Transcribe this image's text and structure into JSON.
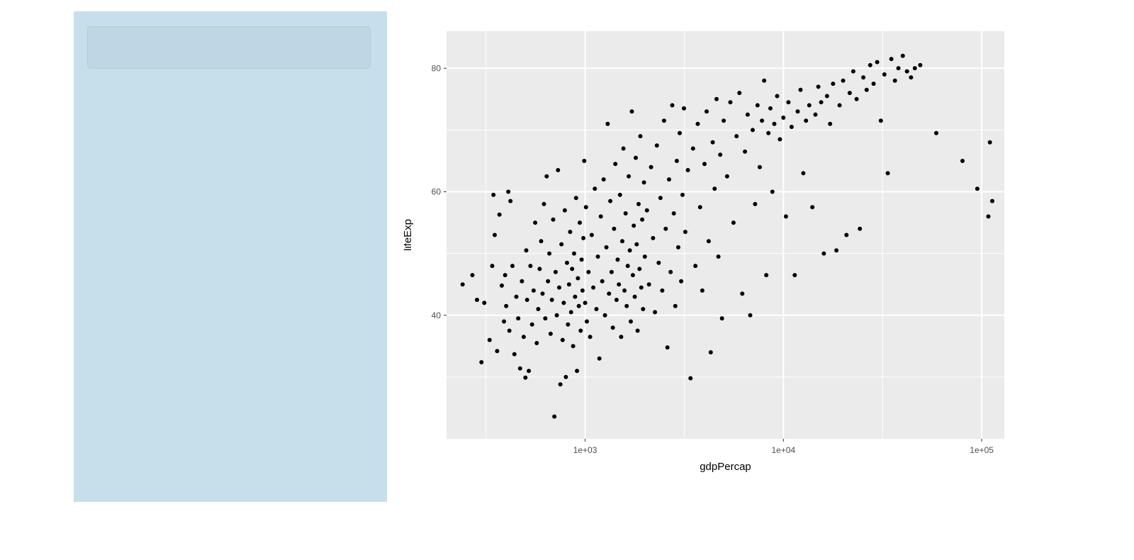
{
  "sidebar": {
    "panel_name": "sidebar-panel"
  },
  "colors": {
    "sidebar_bg": "#c6dfeb",
    "panel_bg": "#ebebeb",
    "grid": "#ffffff",
    "point": "#000000"
  },
  "chart_data": {
    "type": "scatter",
    "title": "",
    "xlabel": "gdpPercap",
    "ylabel": "lifeExp",
    "x_scale": "log10",
    "xlim": [
      200,
      130000
    ],
    "ylim": [
      20,
      86
    ],
    "x_ticks": [
      1000,
      10000,
      100000
    ],
    "x_tick_labels": [
      "1e+03",
      "1e+04",
      "1e+05"
    ],
    "y_ticks": [
      40,
      60,
      80
    ],
    "y_tick_labels": [
      "40",
      "60",
      "80"
    ],
    "grid": true,
    "legend": "none",
    "points": [
      [
        241,
        45.0
      ],
      [
        270,
        46.5
      ],
      [
        285,
        42.5
      ],
      [
        300,
        32.4
      ],
      [
        310,
        42.0
      ],
      [
        330,
        36.0
      ],
      [
        340,
        48.0
      ],
      [
        345,
        59.5
      ],
      [
        350,
        53.0
      ],
      [
        360,
        34.2
      ],
      [
        370,
        56.3
      ],
      [
        380,
        44.8
      ],
      [
        390,
        39.0
      ],
      [
        395,
        46.5
      ],
      [
        400,
        41.5
      ],
      [
        410,
        60.0
      ],
      [
        415,
        37.5
      ],
      [
        420,
        58.5
      ],
      [
        430,
        48.0
      ],
      [
        440,
        33.7
      ],
      [
        450,
        43.0
      ],
      [
        460,
        39.5
      ],
      [
        470,
        31.4
      ],
      [
        480,
        45.5
      ],
      [
        490,
        36.5
      ],
      [
        500,
        29.9
      ],
      [
        505,
        50.5
      ],
      [
        510,
        42.5
      ],
      [
        520,
        31.0
      ],
      [
        530,
        48.0
      ],
      [
        540,
        38.5
      ],
      [
        550,
        44.0
      ],
      [
        560,
        55.0
      ],
      [
        570,
        35.5
      ],
      [
        580,
        41.0
      ],
      [
        590,
        47.5
      ],
      [
        600,
        52.0
      ],
      [
        610,
        43.5
      ],
      [
        620,
        58.0
      ],
      [
        630,
        39.5
      ],
      [
        640,
        62.5
      ],
      [
        650,
        45.5
      ],
      [
        660,
        50.0
      ],
      [
        670,
        37.0
      ],
      [
        680,
        42.5
      ],
      [
        690,
        55.5
      ],
      [
        700,
        23.6
      ],
      [
        710,
        47.0
      ],
      [
        720,
        40.0
      ],
      [
        730,
        63.5
      ],
      [
        740,
        44.5
      ],
      [
        750,
        28.8
      ],
      [
        760,
        51.5
      ],
      [
        770,
        36.0
      ],
      [
        780,
        42.0
      ],
      [
        790,
        57.0
      ],
      [
        800,
        30.0
      ],
      [
        810,
        48.5
      ],
      [
        820,
        38.5
      ],
      [
        830,
        45.0
      ],
      [
        840,
        53.5
      ],
      [
        850,
        40.5
      ],
      [
        860,
        47.5
      ],
      [
        870,
        35.0
      ],
      [
        880,
        50.0
      ],
      [
        890,
        43.0
      ],
      [
        900,
        59.0
      ],
      [
        910,
        31.0
      ],
      [
        920,
        46.0
      ],
      [
        930,
        41.5
      ],
      [
        940,
        55.0
      ],
      [
        950,
        37.5
      ],
      [
        960,
        49.0
      ],
      [
        970,
        44.0
      ],
      [
        980,
        52.5
      ],
      [
        990,
        65.0
      ],
      [
        1000,
        42.0
      ],
      [
        1010,
        57.5
      ],
      [
        1020,
        39.0
      ],
      [
        1040,
        47.0
      ],
      [
        1060,
        36.5
      ],
      [
        1080,
        53.0
      ],
      [
        1100,
        44.5
      ],
      [
        1120,
        60.5
      ],
      [
        1140,
        41.0
      ],
      [
        1160,
        49.5
      ],
      [
        1180,
        33.0
      ],
      [
        1200,
        56.0
      ],
      [
        1220,
        45.5
      ],
      [
        1240,
        62.0
      ],
      [
        1260,
        40.0
      ],
      [
        1280,
        51.0
      ],
      [
        1300,
        71.0
      ],
      [
        1320,
        43.5
      ],
      [
        1340,
        58.5
      ],
      [
        1360,
        47.0
      ],
      [
        1380,
        38.0
      ],
      [
        1400,
        54.0
      ],
      [
        1420,
        64.5
      ],
      [
        1440,
        42.5
      ],
      [
        1460,
        49.0
      ],
      [
        1480,
        45.0
      ],
      [
        1500,
        59.5
      ],
      [
        1520,
        36.5
      ],
      [
        1540,
        52.0
      ],
      [
        1560,
        67.0
      ],
      [
        1580,
        44.0
      ],
      [
        1600,
        56.5
      ],
      [
        1620,
        41.5
      ],
      [
        1640,
        48.0
      ],
      [
        1660,
        62.5
      ],
      [
        1680,
        50.5
      ],
      [
        1700,
        39.0
      ],
      [
        1720,
        73.0
      ],
      [
        1740,
        46.5
      ],
      [
        1760,
        54.5
      ],
      [
        1780,
        43.0
      ],
      [
        1800,
        65.5
      ],
      [
        1820,
        51.5
      ],
      [
        1840,
        37.5
      ],
      [
        1860,
        58.0
      ],
      [
        1880,
        47.5
      ],
      [
        1900,
        69.0
      ],
      [
        1920,
        44.5
      ],
      [
        1940,
        55.5
      ],
      [
        1960,
        41.0
      ],
      [
        1980,
        61.5
      ],
      [
        2000,
        49.5
      ],
      [
        2050,
        57.0
      ],
      [
        2100,
        45.0
      ],
      [
        2150,
        64.0
      ],
      [
        2200,
        52.5
      ],
      [
        2250,
        40.5
      ],
      [
        2300,
        67.5
      ],
      [
        2350,
        48.5
      ],
      [
        2400,
        59.0
      ],
      [
        2450,
        44.0
      ],
      [
        2500,
        71.5
      ],
      [
        2550,
        54.0
      ],
      [
        2600,
        34.8
      ],
      [
        2650,
        62.0
      ],
      [
        2700,
        47.0
      ],
      [
        2750,
        74.0
      ],
      [
        2800,
        56.5
      ],
      [
        2850,
        41.5
      ],
      [
        2900,
        65.0
      ],
      [
        2950,
        51.0
      ],
      [
        3000,
        69.5
      ],
      [
        3050,
        45.5
      ],
      [
        3100,
        59.5
      ],
      [
        3150,
        73.5
      ],
      [
        3200,
        53.5
      ],
      [
        3300,
        63.5
      ],
      [
        3400,
        29.8
      ],
      [
        3500,
        67.0
      ],
      [
        3600,
        48.0
      ],
      [
        3700,
        71.0
      ],
      [
        3800,
        57.5
      ],
      [
        3900,
        44.0
      ],
      [
        4000,
        64.5
      ],
      [
        4100,
        73.0
      ],
      [
        4200,
        52.0
      ],
      [
        4300,
        34.0
      ],
      [
        4400,
        68.0
      ],
      [
        4500,
        60.5
      ],
      [
        4600,
        75.0
      ],
      [
        4700,
        49.5
      ],
      [
        4800,
        66.0
      ],
      [
        4900,
        39.5
      ],
      [
        5000,
        71.5
      ],
      [
        5200,
        62.5
      ],
      [
        5400,
        74.5
      ],
      [
        5600,
        55.0
      ],
      [
        5800,
        69.0
      ],
      [
        6000,
        76.0
      ],
      [
        6200,
        43.5
      ],
      [
        6400,
        66.5
      ],
      [
        6600,
        72.5
      ],
      [
        6800,
        40.0
      ],
      [
        7000,
        70.0
      ],
      [
        7200,
        58.0
      ],
      [
        7400,
        74.0
      ],
      [
        7600,
        64.0
      ],
      [
        7800,
        71.5
      ],
      [
        8000,
        78.0
      ],
      [
        8200,
        46.5
      ],
      [
        8400,
        69.5
      ],
      [
        8600,
        73.5
      ],
      [
        8800,
        60.0
      ],
      [
        9000,
        71.0
      ],
      [
        9300,
        75.5
      ],
      [
        9600,
        68.5
      ],
      [
        10000,
        72.0
      ],
      [
        10300,
        56.0
      ],
      [
        10600,
        74.5
      ],
      [
        11000,
        70.5
      ],
      [
        11400,
        46.5
      ],
      [
        11800,
        73.0
      ],
      [
        12200,
        76.5
      ],
      [
        12600,
        63.0
      ],
      [
        13000,
        71.5
      ],
      [
        13500,
        74.0
      ],
      [
        14000,
        57.5
      ],
      [
        14500,
        72.5
      ],
      [
        15000,
        77.0
      ],
      [
        15500,
        74.5
      ],
      [
        16000,
        50.0
      ],
      [
        16600,
        75.5
      ],
      [
        17200,
        71.0
      ],
      [
        17800,
        77.5
      ],
      [
        18500,
        50.5
      ],
      [
        19200,
        74.0
      ],
      [
        20000,
        78.0
      ],
      [
        20800,
        53.0
      ],
      [
        21600,
        76.0
      ],
      [
        22500,
        79.5
      ],
      [
        23400,
        75.0
      ],
      [
        24300,
        54.0
      ],
      [
        25300,
        78.5
      ],
      [
        26300,
        76.5
      ],
      [
        27400,
        80.5
      ],
      [
        28500,
        77.5
      ],
      [
        29700,
        81.0
      ],
      [
        31000,
        71.5
      ],
      [
        32300,
        79.0
      ],
      [
        33600,
        63.0
      ],
      [
        35000,
        81.5
      ],
      [
        36500,
        78.0
      ],
      [
        38000,
        80.0
      ],
      [
        40000,
        82.0
      ],
      [
        42000,
        79.5
      ],
      [
        44000,
        78.5
      ],
      [
        46000,
        80.0
      ],
      [
        49000,
        80.5
      ],
      [
        59000,
        69.5
      ],
      [
        80000,
        65.0
      ],
      [
        95000,
        60.5
      ],
      [
        108000,
        56.0
      ],
      [
        110000,
        68.0
      ],
      [
        113000,
        58.5
      ]
    ]
  }
}
